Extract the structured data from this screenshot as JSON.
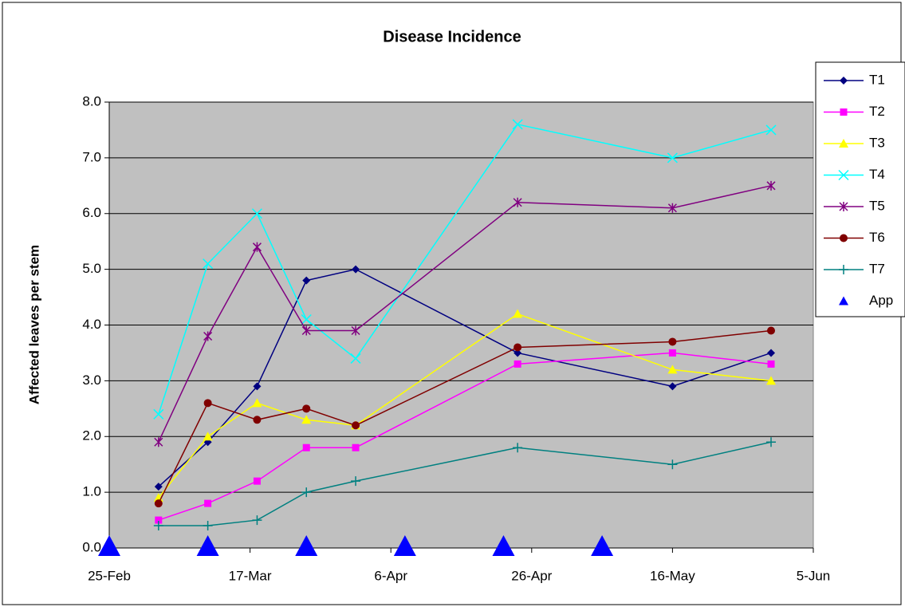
{
  "chart_data": {
    "type": "line",
    "title": "Disease Incidence",
    "y_label": "Affected leaves per stem",
    "x": [
      63,
      70,
      77,
      84,
      91,
      114,
      136,
      150
    ],
    "xlim": [
      56,
      156
    ],
    "xticks": [
      {
        "value": 56,
        "label": "25-Feb"
      },
      {
        "value": 76,
        "label": "17-Mar"
      },
      {
        "value": 96,
        "label": "6-Apr"
      },
      {
        "value": 116,
        "label": "26-Apr"
      },
      {
        "value": 136,
        "label": "16-May"
      },
      {
        "value": 156,
        "label": "5-Jun"
      }
    ],
    "ylim": [
      0,
      8
    ],
    "yticks": [
      {
        "value": 0,
        "label": "0.0"
      },
      {
        "value": 1,
        "label": "1.0"
      },
      {
        "value": 2,
        "label": "2.0"
      },
      {
        "value": 3,
        "label": "3.0"
      },
      {
        "value": 4,
        "label": "4.0"
      },
      {
        "value": 5,
        "label": "5.0"
      },
      {
        "value": 6,
        "label": "6.0"
      },
      {
        "value": 7,
        "label": "7.0"
      },
      {
        "value": 8,
        "label": "8.0"
      }
    ],
    "grid": true,
    "legend": "right",
    "series": [
      {
        "name": "T1",
        "color": "#000080",
        "marker": "diamond",
        "values": [
          1.1,
          1.9,
          2.9,
          4.8,
          5.0,
          3.5,
          2.9,
          3.5
        ]
      },
      {
        "name": "T2",
        "color": "#ff00ff",
        "marker": "square",
        "values": [
          0.5,
          0.8,
          1.2,
          1.8,
          1.8,
          3.3,
          3.5,
          3.3
        ]
      },
      {
        "name": "T3",
        "color": "#ffff00",
        "marker": "triangle",
        "values": [
          0.9,
          2.0,
          2.6,
          2.3,
          2.2,
          4.2,
          3.2,
          3.0
        ]
      },
      {
        "name": "T4",
        "color": "#00ffff",
        "marker": "x",
        "values": [
          2.4,
          5.1,
          6.0,
          4.1,
          3.4,
          7.6,
          7.0,
          7.5
        ]
      },
      {
        "name": "T5",
        "color": "#800080",
        "marker": "star",
        "values": [
          1.9,
          3.8,
          5.4,
          3.9,
          3.9,
          6.2,
          6.1,
          6.5
        ]
      },
      {
        "name": "T6",
        "color": "#800000",
        "marker": "circle",
        "values": [
          0.8,
          2.6,
          2.3,
          2.5,
          2.2,
          3.6,
          3.7,
          3.9
        ]
      },
      {
        "name": "T7",
        "color": "#008080",
        "marker": "plus",
        "values": [
          0.4,
          0.4,
          0.5,
          1.0,
          1.2,
          1.8,
          1.5,
          1.9
        ]
      },
      {
        "name": "App",
        "color": "#0000ff",
        "marker": "big-triangle",
        "line": false,
        "x": [
          56,
          70,
          84,
          98,
          112,
          126
        ],
        "values": [
          0,
          0,
          0,
          0,
          0,
          0
        ]
      }
    ]
  }
}
